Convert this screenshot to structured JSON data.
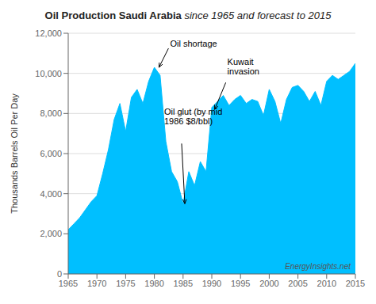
{
  "chart_data": {
    "type": "area",
    "title": "Oil Production Saudi Arabia",
    "subtitle": "since 1965 and forecast to 2015",
    "y_label": "Thousands Barrels Oil Per Day",
    "color": "#00BFFF",
    "grid": true,
    "xlim": [
      1965,
      2015
    ],
    "ylim": [
      0,
      12000
    ],
    "xticks": [
      1965,
      1970,
      1975,
      1980,
      1985,
      1990,
      1995,
      2000,
      2005,
      2010,
      2015
    ],
    "yticks": [
      0,
      {
        "value": 2000,
        "label": "2,000"
      },
      {
        "value": 4000,
        "label": "4,000"
      },
      {
        "value": 6000,
        "label": "6,000"
      },
      {
        "value": 8000,
        "label": "8,000"
      },
      {
        "value": 10000,
        "label": "10,000"
      },
      {
        "value": 12000,
        "label": "12,000"
      }
    ],
    "x": [
      1965,
      1966,
      1967,
      1968,
      1969,
      1970,
      1971,
      1972,
      1973,
      1974,
      1975,
      1976,
      1977,
      1978,
      1979,
      1980,
      1981,
      1982,
      1983,
      1984,
      1985,
      1986,
      1987,
      1988,
      1989,
      1990,
      1991,
      1992,
      1993,
      1994,
      1995,
      1996,
      1997,
      1998,
      1999,
      2000,
      2001,
      2002,
      2003,
      2004,
      2005,
      2006,
      2007,
      2008,
      2009,
      2010,
      2011,
      2012,
      2013,
      2014,
      2015
    ],
    "values": [
      2200,
      2500,
      2800,
      3200,
      3600,
      3900,
      5000,
      6200,
      7700,
      8500,
      7100,
      8800,
      9200,
      8500,
      9600,
      10300,
      9900,
      6600,
      5100,
      4600,
      3500,
      5100,
      4400,
      5600,
      5100,
      8300,
      8600,
      8900,
      8400,
      8700,
      8900,
      8500,
      8700,
      8600,
      7900,
      9200,
      8600,
      7500,
      8700,
      9300,
      9400,
      9100,
      8600,
      9100,
      8400,
      9600,
      9900,
      9700,
      9900,
      10100,
      10500
    ],
    "annotations": [
      {
        "text": "Oil shortage",
        "x": 1980.8,
        "y": 10300
      },
      {
        "text": "Oil glut (by mid\n1986 $8/bbl)",
        "x": 1985.3,
        "y": 3500
      },
      {
        "text": "Kuwait\ninvasion",
        "x": 1990.5,
        "y": 8200
      }
    ],
    "watermark": "EnergyInsights.net"
  }
}
